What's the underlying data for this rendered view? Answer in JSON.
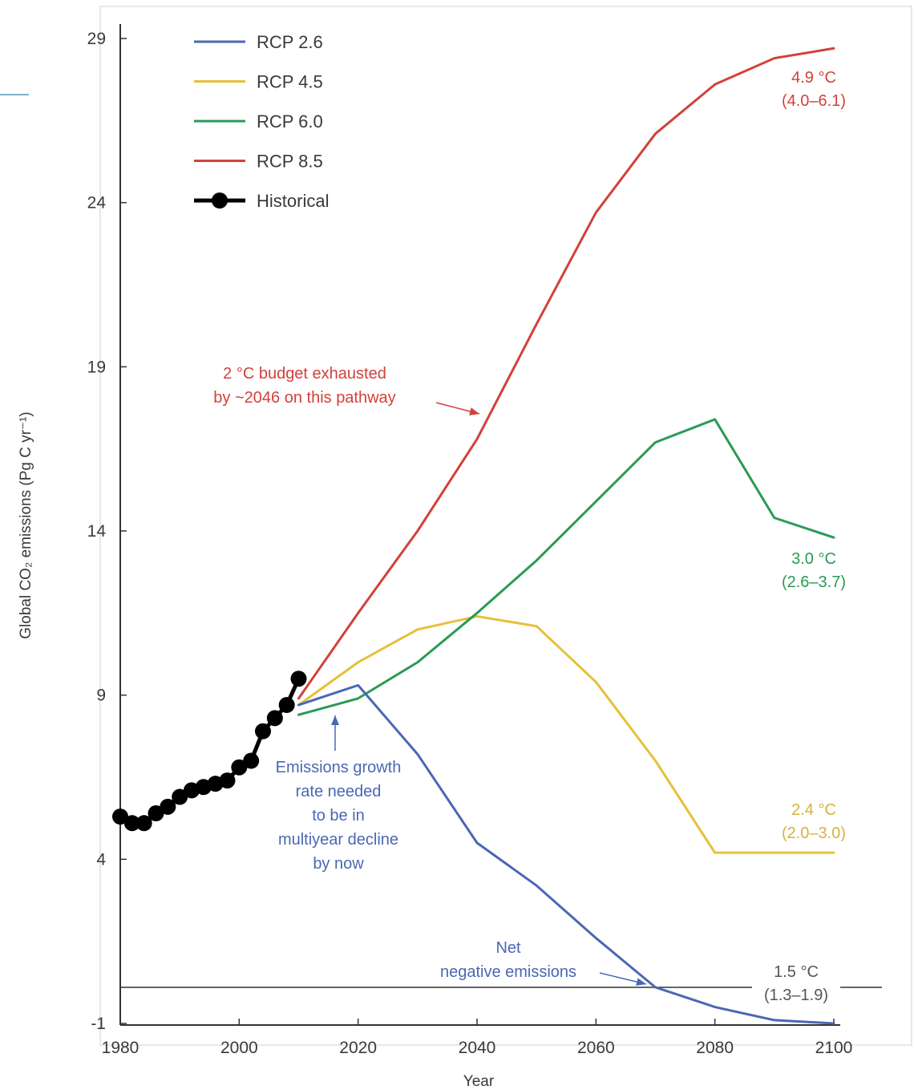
{
  "chart_data": {
    "type": "line",
    "xlabel": "Year",
    "ylabel": "Global CO₂ emissions (Pg C yr⁻¹)",
    "xlim": [
      1980,
      2100
    ],
    "ylim": [
      -1,
      29
    ],
    "x_ticks": [
      1980,
      2000,
      2020,
      2040,
      2060,
      2080,
      2100
    ],
    "x_tick_labels": [
      "1980",
      "2000",
      "2020",
      "2040",
      "2060",
      "2080",
      "2100"
    ],
    "y_ticks": [
      -1,
      4,
      9,
      14,
      19,
      24,
      29
    ],
    "y_tick_labels": [
      "-1",
      "4",
      "9",
      "14",
      "19",
      "24",
      "29"
    ],
    "grid": false,
    "legend_position": "top-left",
    "series": [
      {
        "name": "RCP 2.6",
        "color": "#4a67b4",
        "x": [
          2010,
          2020,
          2030,
          2040,
          2050,
          2060,
          2070,
          2080,
          2090,
          2100
        ],
        "y": [
          8.7,
          9.3,
          7.2,
          4.5,
          3.2,
          1.6,
          0.1,
          -0.5,
          -0.9,
          -1.0
        ]
      },
      {
        "name": "RCP 4.5",
        "color": "#e6c03a",
        "x": [
          2010,
          2020,
          2030,
          2040,
          2050,
          2060,
          2070,
          2080,
          2090,
          2100
        ],
        "y": [
          8.7,
          10.0,
          11.0,
          11.4,
          11.1,
          9.4,
          7.0,
          4.2,
          4.2,
          4.2
        ]
      },
      {
        "name": "RCP 6.0",
        "color": "#2a9a55",
        "x": [
          2010,
          2020,
          2030,
          2040,
          2050,
          2060,
          2070,
          2080,
          2090,
          2100
        ],
        "y": [
          8.4,
          8.9,
          10.0,
          11.5,
          13.1,
          14.9,
          16.7,
          17.4,
          14.4,
          13.8
        ]
      },
      {
        "name": "RCP 8.5",
        "color": "#d2413a",
        "x": [
          2010,
          2020,
          2030,
          2040,
          2050,
          2060,
          2070,
          2080,
          2090,
          2100
        ],
        "y": [
          8.9,
          11.5,
          14.0,
          16.8,
          20.3,
          23.7,
          26.1,
          27.6,
          28.4,
          28.7
        ]
      },
      {
        "name": "Historical",
        "color": "#000000",
        "x": [
          1980,
          1982,
          1984,
          1986,
          1988,
          1990,
          1992,
          1994,
          1996,
          1998,
          2000,
          2002,
          2004,
          2006,
          2008,
          2010
        ],
        "y": [
          5.3,
          5.1,
          5.1,
          5.4,
          5.6,
          5.9,
          6.1,
          6.2,
          6.3,
          6.4,
          6.8,
          7.0,
          7.9,
          8.3,
          8.7,
          9.5
        ]
      }
    ],
    "annotations": [
      {
        "text_lines": [
          "2 °C budget exhausted",
          "by ~2046 on this pathway"
        ],
        "color": "#d2413a"
      },
      {
        "text_lines": [
          "Emissions growth",
          "rate needed",
          "to be in",
          "multiyear decline",
          "by now"
        ],
        "color": "#4a67b4"
      },
      {
        "text_lines": [
          "Net",
          "negative emissions"
        ],
        "color": "#4a67b4"
      }
    ],
    "end_labels": [
      {
        "series": "RCP 8.5",
        "lines": [
          "4.9 °C",
          "(4.0–6.1)"
        ],
        "color": "#d2413a"
      },
      {
        "series": "RCP 6.0",
        "lines": [
          "3.0 °C",
          "(2.6–3.7)"
        ],
        "color": "#2a9a55"
      },
      {
        "series": "RCP 4.5",
        "lines": [
          "2.4 °C",
          "(2.0–3.0)"
        ],
        "color": "#d9b23a"
      },
      {
        "series": "RCP 2.6",
        "lines": [
          "1.5 °C",
          "(1.3–1.9)"
        ],
        "color": "#555555"
      }
    ]
  }
}
